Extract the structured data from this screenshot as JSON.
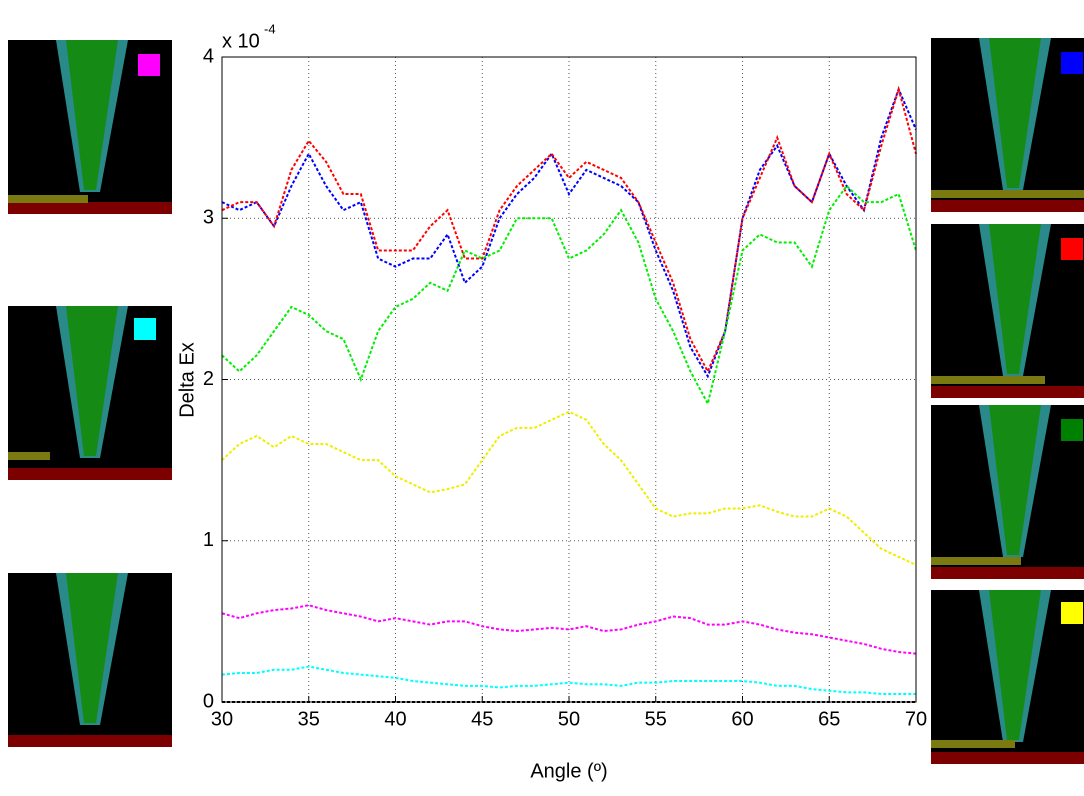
{
  "chart_data": {
    "type": "line",
    "y_multiplier": "x 10",
    "y_exponent": "-4",
    "x_label": "Angle (º)",
    "y_label": "Delta Ex",
    "x": [
      30,
      31,
      32,
      33,
      34,
      35,
      36,
      37,
      38,
      39,
      40,
      41,
      42,
      43,
      44,
      45,
      46,
      47,
      48,
      49,
      50,
      51,
      52,
      53,
      54,
      55,
      56,
      57,
      58,
      59,
      60,
      61,
      62,
      63,
      64,
      65,
      66,
      67,
      68,
      69,
      70
    ],
    "series": [
      {
        "color": "#0000ff",
        "values": [
          3.1,
          3.05,
          3.1,
          2.95,
          3.2,
          3.4,
          3.2,
          3.05,
          3.1,
          2.75,
          2.7,
          2.75,
          2.75,
          2.9,
          2.6,
          2.7,
          3.0,
          3.15,
          3.25,
          3.4,
          3.15,
          3.3,
          3.25,
          3.2,
          3.1,
          2.8,
          2.55,
          2.2,
          2.02,
          2.3,
          3.0,
          3.3,
          3.45,
          3.2,
          3.1,
          3.4,
          3.2,
          3.05,
          3.5,
          3.8,
          3.55
        ]
      },
      {
        "color": "#ff0000",
        "values": [
          3.05,
          3.1,
          3.1,
          2.95,
          3.3,
          3.48,
          3.35,
          3.15,
          3.15,
          2.8,
          2.8,
          2.8,
          2.95,
          3.05,
          2.75,
          2.75,
          3.05,
          3.2,
          3.3,
          3.4,
          3.25,
          3.35,
          3.3,
          3.25,
          3.1,
          2.85,
          2.6,
          2.25,
          2.05,
          2.3,
          3.0,
          3.25,
          3.5,
          3.2,
          3.1,
          3.4,
          3.15,
          3.05,
          3.45,
          3.8,
          3.4
        ]
      },
      {
        "color": "#00ee00",
        "values": [
          2.15,
          2.05,
          2.15,
          2.3,
          2.45,
          2.4,
          2.3,
          2.25,
          2.0,
          2.3,
          2.45,
          2.5,
          2.6,
          2.55,
          2.8,
          2.75,
          2.8,
          3.0,
          3.0,
          3.0,
          2.75,
          2.8,
          2.9,
          3.05,
          2.85,
          2.5,
          2.3,
          2.05,
          1.85,
          2.3,
          2.8,
          2.9,
          2.85,
          2.85,
          2.7,
          3.05,
          3.2,
          3.1,
          3.1,
          3.15,
          2.8
        ]
      },
      {
        "color": "#eeee00",
        "values": [
          1.5,
          1.6,
          1.65,
          1.58,
          1.65,
          1.6,
          1.6,
          1.55,
          1.5,
          1.5,
          1.4,
          1.35,
          1.3,
          1.32,
          1.35,
          1.5,
          1.65,
          1.7,
          1.7,
          1.75,
          1.8,
          1.75,
          1.6,
          1.5,
          1.35,
          1.2,
          1.15,
          1.17,
          1.17,
          1.2,
          1.2,
          1.22,
          1.18,
          1.15,
          1.15,
          1.2,
          1.15,
          1.05,
          0.95,
          0.9,
          0.85
        ]
      },
      {
        "color": "#ff00ff",
        "values": [
          0.55,
          0.52,
          0.55,
          0.57,
          0.58,
          0.6,
          0.57,
          0.55,
          0.53,
          0.5,
          0.52,
          0.5,
          0.48,
          0.5,
          0.5,
          0.47,
          0.45,
          0.44,
          0.45,
          0.46,
          0.45,
          0.47,
          0.44,
          0.45,
          0.48,
          0.5,
          0.53,
          0.52,
          0.48,
          0.48,
          0.5,
          0.48,
          0.45,
          0.43,
          0.42,
          0.4,
          0.38,
          0.36,
          0.33,
          0.31,
          0.3
        ]
      },
      {
        "color": "#00ffff",
        "values": [
          0.17,
          0.18,
          0.18,
          0.2,
          0.2,
          0.22,
          0.2,
          0.18,
          0.17,
          0.16,
          0.15,
          0.13,
          0.12,
          0.11,
          0.1,
          0.1,
          0.09,
          0.1,
          0.1,
          0.11,
          0.12,
          0.11,
          0.11,
          0.1,
          0.12,
          0.12,
          0.13,
          0.13,
          0.13,
          0.13,
          0.13,
          0.12,
          0.1,
          0.1,
          0.08,
          0.07,
          0.06,
          0.06,
          0.05,
          0.05,
          0.05
        ]
      },
      {
        "color": "#000000",
        "values": [
          0,
          0,
          0,
          0,
          0,
          0,
          0,
          0,
          0,
          0,
          0,
          0,
          0,
          0,
          0,
          0,
          0,
          0,
          0,
          0,
          0,
          0,
          0,
          0,
          0,
          0,
          0,
          0,
          0,
          0,
          0,
          0,
          0,
          0,
          0,
          0,
          0,
          0,
          0,
          0,
          0
        ]
      }
    ],
    "xlim": [
      30,
      70
    ],
    "xticks": [
      30,
      35,
      40,
      45,
      50,
      55,
      60,
      65,
      70
    ],
    "ylim": [
      0,
      4
    ],
    "yticks": [
      0,
      1,
      2,
      3,
      4
    ],
    "grid": true
  }
}
